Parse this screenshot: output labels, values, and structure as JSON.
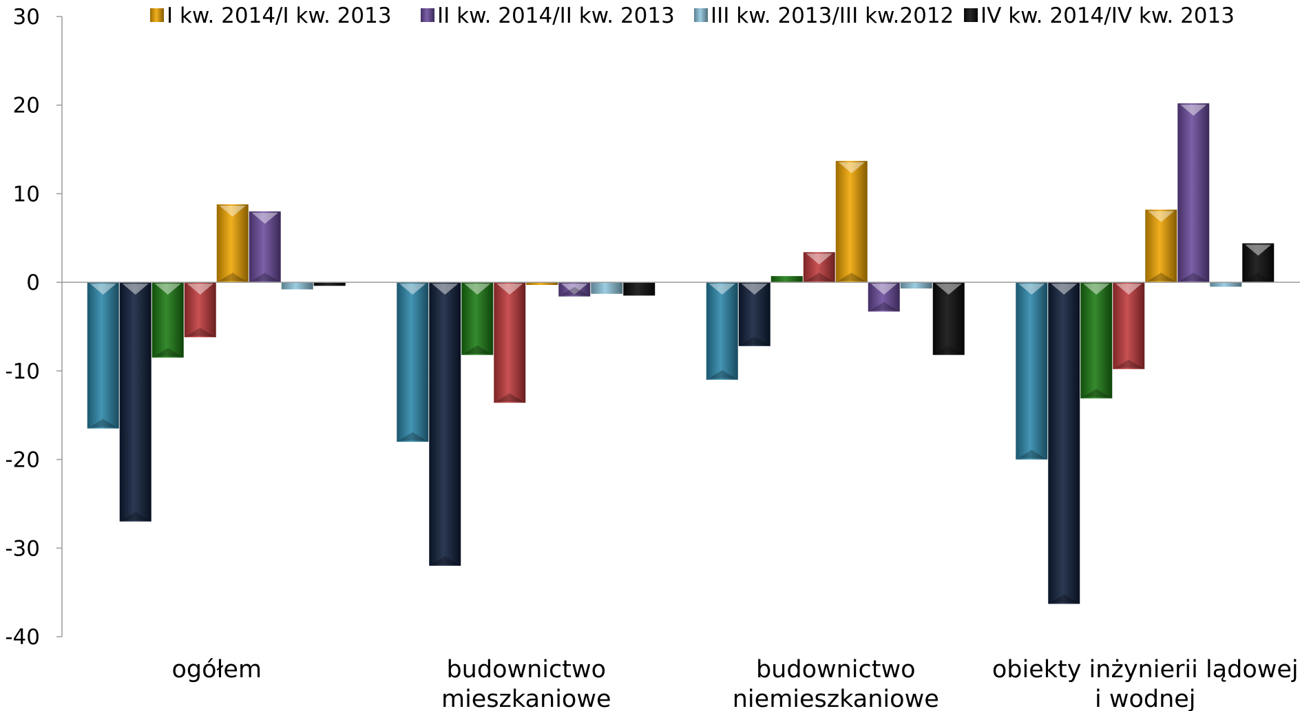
{
  "chart_data": {
    "type": "bar",
    "categories": [
      [
        "ogółem"
      ],
      [
        "budownictwo",
        "mieszkaniowe"
      ],
      [
        "budownictwo",
        "niemieszkaniowe"
      ],
      [
        "obiekty inżynierii lądowej",
        "i wodnej"
      ]
    ],
    "series": [
      {
        "color": "#2B87AA",
        "values": [
          -16.5,
          -18,
          -11,
          -20
        ]
      },
      {
        "color": "#0F1E3A",
        "values": [
          -27,
          -32,
          -7.2,
          -36.3
        ]
      },
      {
        "color": "#1B7A12",
        "values": [
          -8.5,
          -8.2,
          0.7,
          -13.1
        ]
      },
      {
        "color": "#C0393B",
        "values": [
          -6.2,
          -13.6,
          3.4,
          -9.8
        ]
      },
      {
        "name": "I kw. 2014/I kw. 2013",
        "color": "#F0A500",
        "values": [
          8.8,
          -0.3,
          13.7,
          8.2
        ]
      },
      {
        "name": "II kw. 2014/II kw. 2013",
        "color": "#6A4A9C",
        "values": [
          8,
          -1.6,
          -3.3,
          20.2
        ]
      },
      {
        "name": "III kw. 2013/III kw.2012",
        "color": "#8FC6DE",
        "values": [
          -0.8,
          -1.3,
          -0.7,
          -0.5
        ]
      },
      {
        "name": "IV kw. 2014/IV kw. 2013",
        "color": "#0A0A0A",
        "values": [
          -0.4,
          -1.5,
          -8.2,
          4.4
        ]
      }
    ],
    "yticks": [
      "30",
      "20",
      "10",
      "0",
      "-10",
      "-20",
      "-30",
      "-40"
    ],
    "ylim": [
      -40,
      30
    ],
    "legend_position": "top",
    "grid": false
  }
}
